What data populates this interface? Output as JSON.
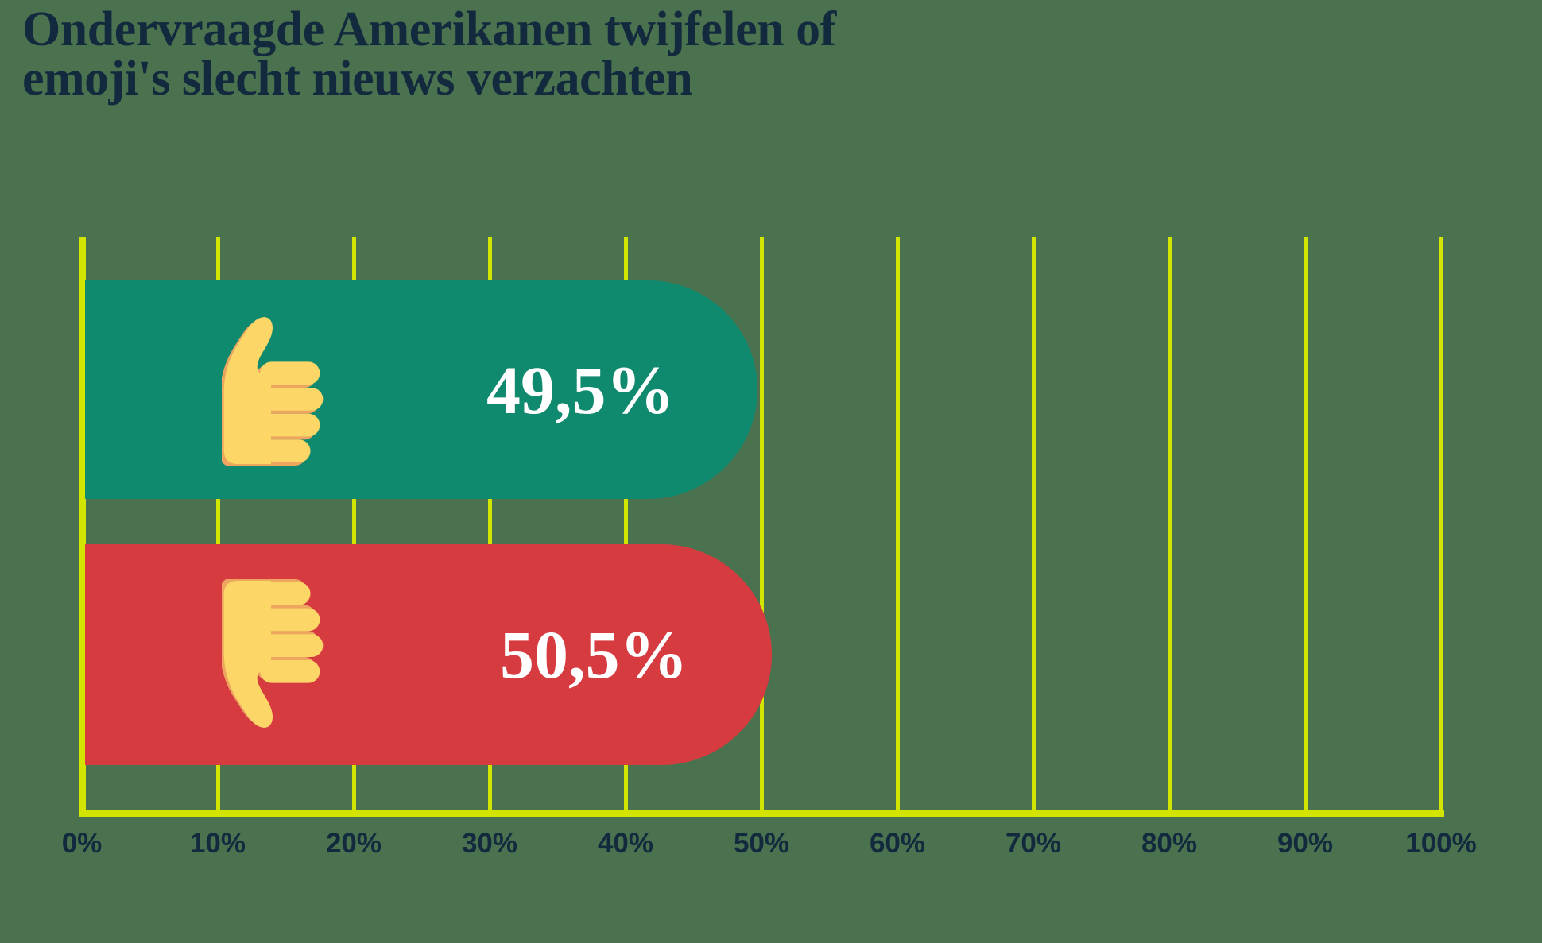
{
  "title": {
    "line1": "Ondervraagde Amerikanen twijfelen of",
    "line2": "emoji's slecht nieuws verzachten"
  },
  "colors": {
    "background": "#4A724F",
    "title_text": "#12293E",
    "grid_line": "#D2E400",
    "axis_line": "#D2E400",
    "bar_positive": "#0F8A6E",
    "bar_negative": "#D63B40",
    "value_text": "#FFFFFF",
    "tick_text": "#12293E",
    "emoji_skin": "#FCD768",
    "emoji_shadow": "#EDA55F"
  },
  "chart_data": {
    "type": "bar",
    "orientation": "horizontal",
    "title": "Ondervraagde Amerikanen twijfelen of emoji's slecht nieuws verzachten",
    "categories": [
      "thumbs-up (emoji's verzachten slecht nieuws)",
      "thumbs-down (emoji's verzachten slecht nieuws niet)"
    ],
    "values": [
      49.5,
      50.5
    ],
    "value_labels": [
      "49,5%",
      "50,5%"
    ],
    "category_icons": [
      "thumbs-up-icon",
      "thumbs-down-icon"
    ],
    "xlim": [
      0,
      100
    ],
    "x_ticks": [
      "0%",
      "10%",
      "20%",
      "30%",
      "40%",
      "50%",
      "60%",
      "70%",
      "80%",
      "90%",
      "100%"
    ],
    "x_tick_values": [
      0,
      10,
      20,
      30,
      40,
      50,
      60,
      70,
      80,
      90,
      100
    ],
    "xlabel": "",
    "ylabel": "",
    "grid": true,
    "legend": false
  }
}
